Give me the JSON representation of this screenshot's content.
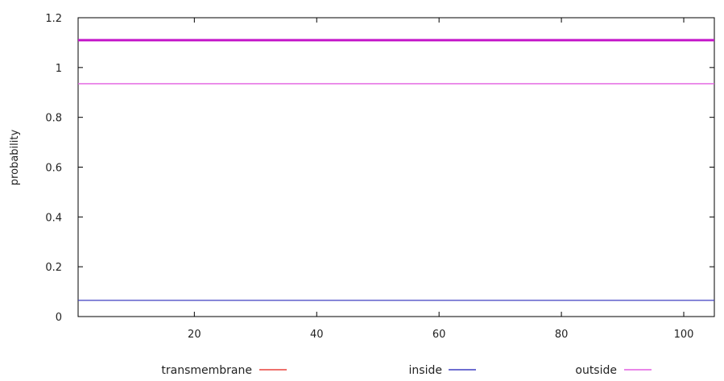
{
  "chart_data": {
    "type": "line",
    "ylabel": "probability",
    "xlabel": "",
    "xlim": [
      1,
      105
    ],
    "ylim": [
      0,
      1.2
    ],
    "x_ticks": [
      20,
      40,
      60,
      80,
      100
    ],
    "y_ticks": [
      0,
      0.2,
      0.4,
      0.6,
      0.8,
      1,
      1.2
    ],
    "x_tick_labels": [
      "20",
      "40",
      "60",
      "80",
      "100"
    ],
    "y_tick_labels": [
      "0",
      "0.2",
      "0.4",
      "0.6",
      "0.8",
      "1",
      "1.2"
    ],
    "grid": false,
    "legend_placement": "bottom",
    "legend": [
      {
        "name": "transmembrane",
        "color": "#e8423c"
      },
      {
        "name": "inside",
        "color": "#3f3fc2"
      },
      {
        "name": "outside",
        "color": "#e25ee0"
      }
    ],
    "series": [
      {
        "name": "inside",
        "color": "#3f3fc2",
        "x": [
          1,
          105
        ],
        "values": [
          0.065,
          0.065
        ],
        "stroke_weight": "normal"
      },
      {
        "name": "outside",
        "color": "#e25ee0",
        "x": [
          1,
          105
        ],
        "values": [
          0.935,
          0.935
        ],
        "stroke_weight": "normal"
      },
      {
        "name": "",
        "color": "#c416c9",
        "x": [
          1,
          105
        ],
        "values": [
          1.11,
          1.11
        ],
        "stroke_weight": "bold"
      }
    ]
  }
}
